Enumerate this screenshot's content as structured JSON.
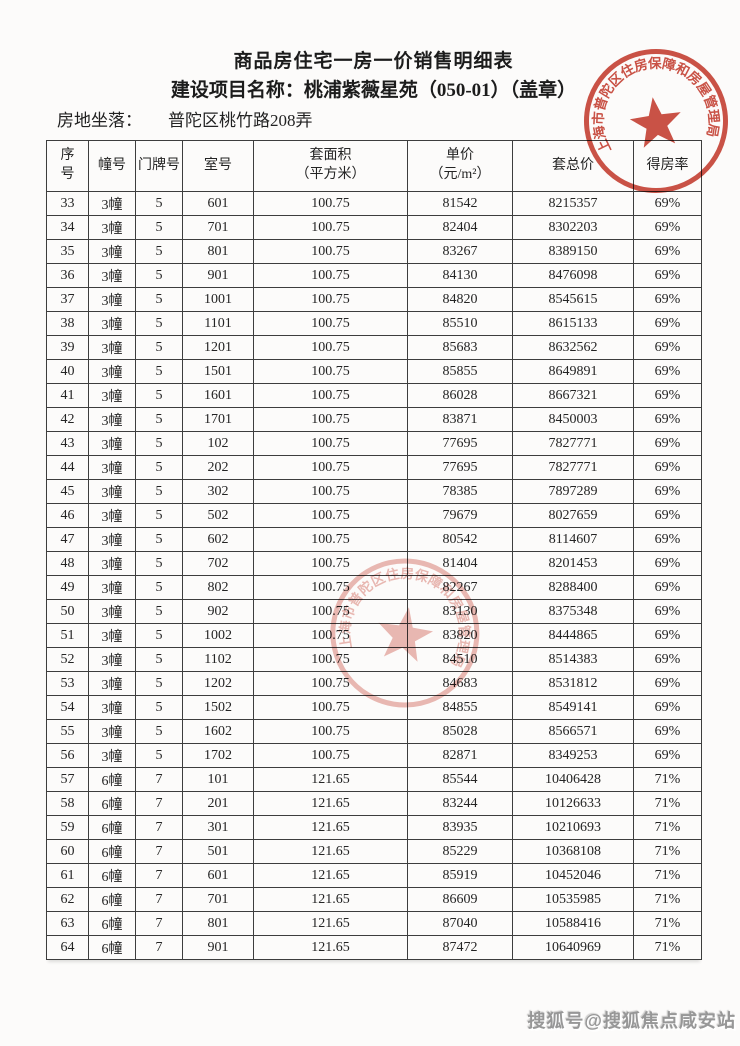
{
  "page": {
    "title": "商品房住宅一房一价销售明细表",
    "project_line": "建设项目名称：桃浦紫薇星苑（050-01）（盖章）",
    "location_label": "房地坐落：",
    "location_value": "普陀区桃竹路208弄"
  },
  "table": {
    "header": {
      "seq": [
        "序",
        "号"
      ],
      "building": "幢号",
      "door": "门牌号",
      "room": "室号",
      "area": [
        "套面积",
        "（平方米）"
      ],
      "unit_price": [
        "单价",
        "（元/m²）"
      ],
      "total_price": "套总价",
      "ratio": "得房率"
    },
    "rows": [
      [
        "33",
        "3幢",
        "5",
        "601",
        "100.75",
        "81542",
        "8215357",
        "69%"
      ],
      [
        "34",
        "3幢",
        "5",
        "701",
        "100.75",
        "82404",
        "8302203",
        "69%"
      ],
      [
        "35",
        "3幢",
        "5",
        "801",
        "100.75",
        "83267",
        "8389150",
        "69%"
      ],
      [
        "36",
        "3幢",
        "5",
        "901",
        "100.75",
        "84130",
        "8476098",
        "69%"
      ],
      [
        "37",
        "3幢",
        "5",
        "1001",
        "100.75",
        "84820",
        "8545615",
        "69%"
      ],
      [
        "38",
        "3幢",
        "5",
        "1101",
        "100.75",
        "85510",
        "8615133",
        "69%"
      ],
      [
        "39",
        "3幢",
        "5",
        "1201",
        "100.75",
        "85683",
        "8632562",
        "69%"
      ],
      [
        "40",
        "3幢",
        "5",
        "1501",
        "100.75",
        "85855",
        "8649891",
        "69%"
      ],
      [
        "41",
        "3幢",
        "5",
        "1601",
        "100.75",
        "86028",
        "8667321",
        "69%"
      ],
      [
        "42",
        "3幢",
        "5",
        "1701",
        "100.75",
        "83871",
        "8450003",
        "69%"
      ],
      [
        "43",
        "3幢",
        "5",
        "102",
        "100.75",
        "77695",
        "7827771",
        "69%"
      ],
      [
        "44",
        "3幢",
        "5",
        "202",
        "100.75",
        "77695",
        "7827771",
        "69%"
      ],
      [
        "45",
        "3幢",
        "5",
        "302",
        "100.75",
        "78385",
        "7897289",
        "69%"
      ],
      [
        "46",
        "3幢",
        "5",
        "502",
        "100.75",
        "79679",
        "8027659",
        "69%"
      ],
      [
        "47",
        "3幢",
        "5",
        "602",
        "100.75",
        "80542",
        "8114607",
        "69%"
      ],
      [
        "48",
        "3幢",
        "5",
        "702",
        "100.75",
        "81404",
        "8201453",
        "69%"
      ],
      [
        "49",
        "3幢",
        "5",
        "802",
        "100.75",
        "82267",
        "8288400",
        "69%"
      ],
      [
        "50",
        "3幢",
        "5",
        "902",
        "100.75",
        "83130",
        "8375348",
        "69%"
      ],
      [
        "51",
        "3幢",
        "5",
        "1002",
        "100.75",
        "83820",
        "8444865",
        "69%"
      ],
      [
        "52",
        "3幢",
        "5",
        "1102",
        "100.75",
        "84510",
        "8514383",
        "69%"
      ],
      [
        "53",
        "3幢",
        "5",
        "1202",
        "100.75",
        "84683",
        "8531812",
        "69%"
      ],
      [
        "54",
        "3幢",
        "5",
        "1502",
        "100.75",
        "84855",
        "8549141",
        "69%"
      ],
      [
        "55",
        "3幢",
        "5",
        "1602",
        "100.75",
        "85028",
        "8566571",
        "69%"
      ],
      [
        "56",
        "3幢",
        "5",
        "1702",
        "100.75",
        "82871",
        "8349253",
        "69%"
      ],
      [
        "57",
        "6幢",
        "7",
        "101",
        "121.65",
        "85544",
        "10406428",
        "71%"
      ],
      [
        "58",
        "6幢",
        "7",
        "201",
        "121.65",
        "83244",
        "10126633",
        "71%"
      ],
      [
        "59",
        "6幢",
        "7",
        "301",
        "121.65",
        "83935",
        "10210693",
        "71%"
      ],
      [
        "60",
        "6幢",
        "7",
        "501",
        "121.65",
        "85229",
        "10368108",
        "71%"
      ],
      [
        "61",
        "6幢",
        "7",
        "601",
        "121.65",
        "85919",
        "10452046",
        "71%"
      ],
      [
        "62",
        "6幢",
        "7",
        "701",
        "121.65",
        "86609",
        "10535985",
        "71%"
      ],
      [
        "63",
        "6幢",
        "7",
        "801",
        "121.65",
        "87040",
        "10588416",
        "71%"
      ],
      [
        "64",
        "6幢",
        "7",
        "901",
        "121.65",
        "87472",
        "10640969",
        "71%"
      ]
    ]
  },
  "stamps": {
    "official_seal_text": "上海市普陀区住房保障和房屋管理局",
    "seal_color": "#c53b2d"
  },
  "watermark": {
    "text": "搜狐号@搜狐焦点咸安站"
  }
}
